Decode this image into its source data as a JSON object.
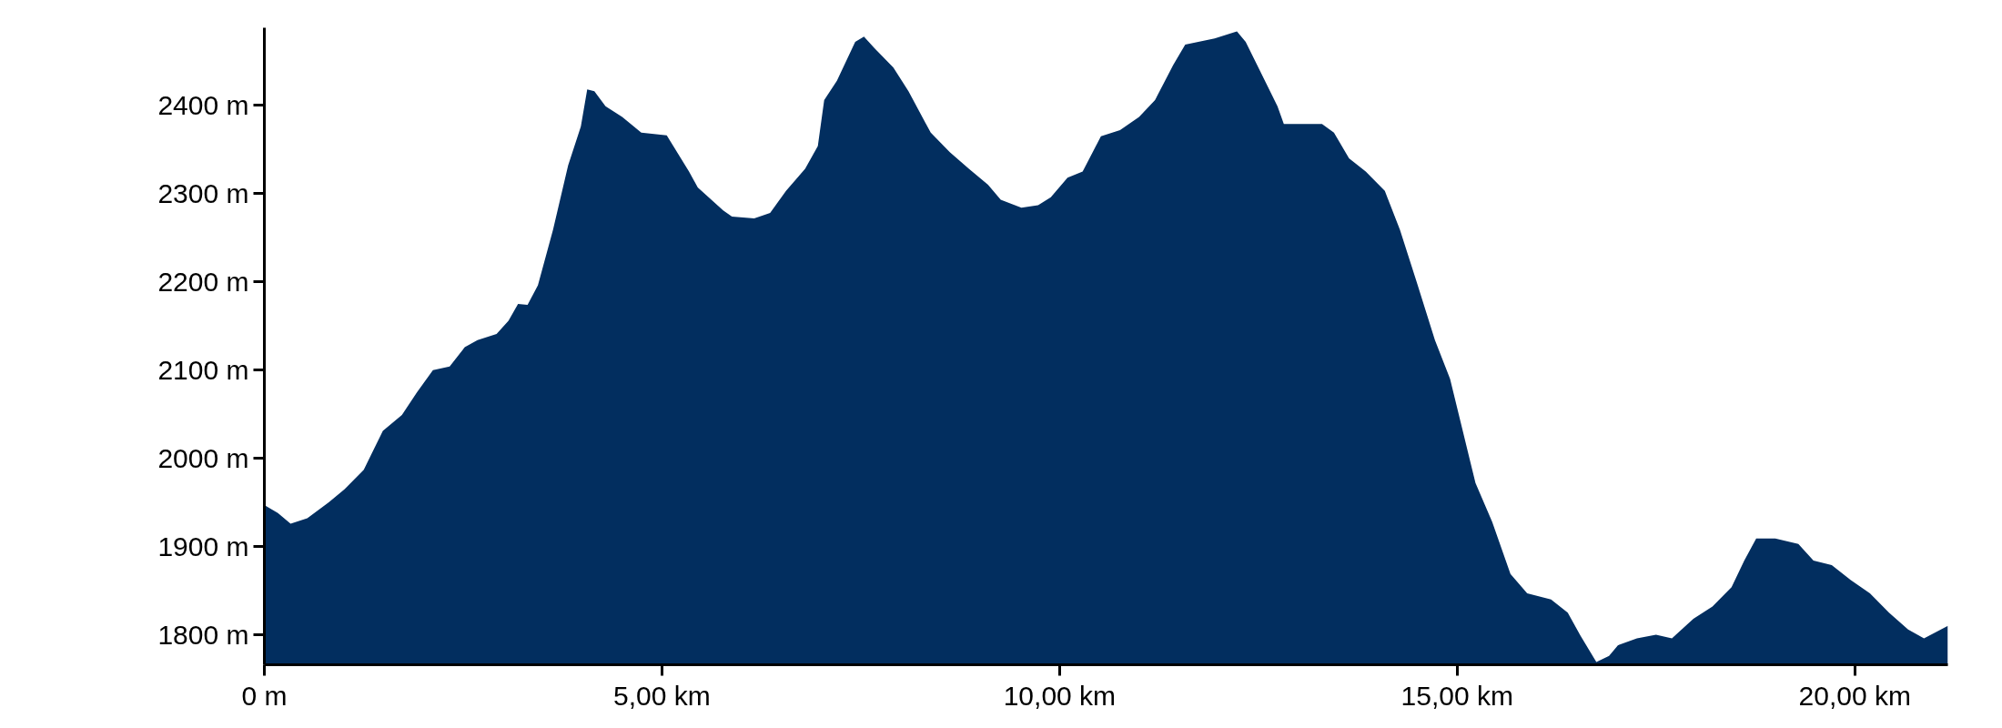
{
  "chart_data": {
    "type": "area",
    "color": "#022e5f",
    "grid": false,
    "x": [
      0,
      0.17,
      0.33,
      0.54,
      0.81,
      1.01,
      1.25,
      1.49,
      1.73,
      1.92,
      2.12,
      2.33,
      2.52,
      2.68,
      2.92,
      3.07,
      3.19,
      3.31,
      3.44,
      3.63,
      3.82,
      3.98,
      4.06,
      4.15,
      4.29,
      4.5,
      4.74,
      5.06,
      5.34,
      5.45,
      5.77,
      5.88,
      6.16,
      6.36,
      6.56,
      6.8,
      6.96,
      7.04,
      7.2,
      7.43,
      7.54,
      7.67,
      7.91,
      8.1,
      8.38,
      8.62,
      8.86,
      9.1,
      9.26,
      9.52,
      9.73,
      9.89,
      10.1,
      10.29,
      10.52,
      10.76,
      11.0,
      11.2,
      11.43,
      11.58,
      11.95,
      12.23,
      12.34,
      12.5,
      12.74,
      12.82,
      13.3,
      13.45,
      13.64,
      13.85,
      14.09,
      14.28,
      14.49,
      14.72,
      14.91,
      15.07,
      15.23,
      15.44,
      15.67,
      15.88,
      16.18,
      16.39,
      16.55,
      16.75,
      16.91,
      17.02,
      17.26,
      17.5,
      17.7,
      17.97,
      18.21,
      18.45,
      18.61,
      18.76,
      19.0,
      19.29,
      19.48,
      19.71,
      19.95,
      20.19,
      20.43,
      20.67,
      20.87,
      21.17
    ],
    "values": [
      1947,
      1938,
      1926,
      1932,
      1950,
      1965,
      1987,
      2031,
      2049,
      2075,
      2100,
      2104,
      2126,
      2134,
      2141,
      2156,
      2175,
      2174,
      2196,
      2259,
      2332,
      2376,
      2418,
      2416,
      2399,
      2387,
      2369,
      2366,
      2325,
      2307,
      2281,
      2274,
      2272,
      2278,
      2303,
      2328,
      2354,
      2406,
      2428,
      2472,
      2478,
      2465,
      2443,
      2416,
      2369,
      2347,
      2328,
      2310,
      2293,
      2284,
      2287,
      2296,
      2318,
      2325,
      2365,
      2372,
      2387,
      2406,
      2446,
      2469,
      2476,
      2484,
      2472,
      2443,
      2399,
      2379,
      2379,
      2369,
      2340,
      2325,
      2303,
      2259,
      2200,
      2134,
      2090,
      2031,
      1972,
      1928,
      1869,
      1847,
      1840,
      1825,
      1799,
      1769,
      1776,
      1788,
      1796,
      1800,
      1796,
      1818,
      1832,
      1854,
      1884,
      1909,
      1909,
      1903,
      1884,
      1879,
      1862,
      1847,
      1825,
      1806,
      1796,
      1810
    ],
    "xlim": [
      0,
      21.17
    ],
    "ylim": [
      1766,
      2488
    ],
    "xticks": [
      {
        "value": 0,
        "label": "0 m"
      },
      {
        "value": 5,
        "label": "5,00 km"
      },
      {
        "value": 10,
        "label": "10,00 km"
      },
      {
        "value": 15,
        "label": "15,00 km"
      },
      {
        "value": 20,
        "label": "20,00 km"
      }
    ],
    "yticks": [
      {
        "value": 1800,
        "label": "1800 m"
      },
      {
        "value": 1900,
        "label": "1900 m"
      },
      {
        "value": 2000,
        "label": "2000 m"
      },
      {
        "value": 2100,
        "label": "2100 m"
      },
      {
        "value": 2200,
        "label": "2200 m"
      },
      {
        "value": 2300,
        "label": "2300 m"
      },
      {
        "value": 2400,
        "label": "2400 m"
      }
    ]
  }
}
